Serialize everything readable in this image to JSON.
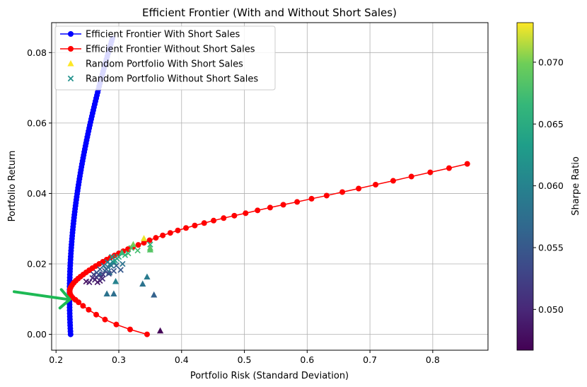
{
  "chart_data": {
    "type": "line",
    "title": "Efficient Frontier (With and Without Short Sales)",
    "xlabel": "Portfolio Risk (Standard Deviation)",
    "ylabel": "Portfolio Return",
    "xlim": [
      0.193,
      0.888
    ],
    "ylim": [
      -0.0045,
      0.0885
    ],
    "xticks": [
      0.2,
      0.3,
      0.4,
      0.5,
      0.6,
      0.7,
      0.8
    ],
    "xtick_labels": [
      "0.2",
      "0.3",
      "0.4",
      "0.5",
      "0.6",
      "0.7",
      "0.8"
    ],
    "yticks": [
      0.0,
      0.02,
      0.04,
      0.06,
      0.08
    ],
    "ytick_labels": [
      "0.00",
      "0.02",
      "0.04",
      "0.06",
      "0.08"
    ],
    "grid": true,
    "legend_position": "top-left",
    "colorbar": {
      "label": "Sharpe Ratio",
      "range": [
        0.0467,
        0.0732
      ],
      "ticks": [
        0.05,
        0.055,
        0.06,
        0.065,
        0.07
      ],
      "tick_labels": [
        "0.050",
        "0.055",
        "0.060",
        "0.065",
        "0.070"
      ],
      "colormap": "viridis"
    },
    "series": [
      {
        "name": "Efficient Frontier With Short Sales",
        "kind": "line-marker",
        "color": "#0000ff",
        "marker": "circle",
        "min_variance": [
          0.2215,
          0.0108
        ],
        "curve": {
          "a": 6.52,
          "point_count": 100,
          "y_range": [
            0.0,
            0.084
          ]
        }
      },
      {
        "name": "Efficient Frontier Without Short Sales",
        "kind": "line-marker",
        "color": "#ff0000",
        "marker": "circle",
        "x": [
          0.345,
          0.318,
          0.296,
          0.278,
          0.264,
          0.252,
          0.243,
          0.236,
          0.231,
          0.2265,
          0.2238,
          0.2222,
          0.2218,
          0.2222,
          0.2235,
          0.2255,
          0.2281,
          0.2313,
          0.235,
          0.239,
          0.2434,
          0.248,
          0.2529,
          0.258,
          0.2633,
          0.2688,
          0.2746,
          0.2806,
          0.2868,
          0.2932,
          0.3,
          0.3071,
          0.3146,
          0.3226,
          0.331,
          0.34,
          0.349,
          0.359,
          0.37,
          0.382,
          0.394,
          0.407,
          0.421,
          0.436,
          0.451,
          0.467,
          0.484,
          0.502,
          0.521,
          0.541,
          0.562,
          0.584,
          0.607,
          0.631,
          0.656,
          0.682,
          0.709,
          0.737,
          0.766,
          0.796,
          0.826,
          0.855
        ],
        "y": [
          0.0,
          0.0014,
          0.0028,
          0.0042,
          0.0056,
          0.007,
          0.0081,
          0.0091,
          0.0098,
          0.0104,
          0.011,
          0.0116,
          0.0122,
          0.0128,
          0.0134,
          0.014,
          0.0146,
          0.0152,
          0.0158,
          0.0164,
          0.017,
          0.0176,
          0.0182,
          0.0188,
          0.0194,
          0.02,
          0.0206,
          0.0212,
          0.0218,
          0.0224,
          0.023,
          0.0236,
          0.0242,
          0.0248,
          0.0254,
          0.026,
          0.0267,
          0.0274,
          0.0281,
          0.0288,
          0.0295,
          0.0302,
          0.0309,
          0.0316,
          0.0323,
          0.033,
          0.0337,
          0.0344,
          0.0352,
          0.036,
          0.0368,
          0.0376,
          0.0385,
          0.0394,
          0.0404,
          0.0414,
          0.0425,
          0.0436,
          0.0448,
          0.046,
          0.0472,
          0.0484
        ]
      },
      {
        "name": "Random Portfolio With Short Sales",
        "kind": "scatter",
        "marker": "triangle",
        "legend_color": "#fde725",
        "points": [
          {
            "x": 0.366,
            "y": 0.001,
            "s": 0.0472
          },
          {
            "x": 0.356,
            "y": 0.0112,
            "s": 0.056
          },
          {
            "x": 0.281,
            "y": 0.0115,
            "s": 0.058
          },
          {
            "x": 0.292,
            "y": 0.0115,
            "s": 0.0575
          },
          {
            "x": 0.345,
            "y": 0.0163,
            "s": 0.059
          },
          {
            "x": 0.338,
            "y": 0.0143,
            "s": 0.058
          },
          {
            "x": 0.295,
            "y": 0.015,
            "s": 0.06
          },
          {
            "x": 0.34,
            "y": 0.0272,
            "s": 0.0728
          },
          {
            "x": 0.35,
            "y": 0.0245,
            "s": 0.069
          },
          {
            "x": 0.35,
            "y": 0.024,
            "s": 0.0685
          },
          {
            "x": 0.323,
            "y": 0.0255,
            "s": 0.07
          },
          {
            "x": 0.305,
            "y": 0.0232,
            "s": 0.067
          },
          {
            "x": 0.292,
            "y": 0.0205,
            "s": 0.065
          },
          {
            "x": 0.27,
            "y": 0.017,
            "s": 0.056
          },
          {
            "x": 0.285,
            "y": 0.0175,
            "s": 0.058
          }
        ]
      },
      {
        "name": "Random Portfolio Without Short Sales",
        "kind": "scatter",
        "marker": "x",
        "legend_color": "#21918c",
        "points": [
          {
            "x": 0.248,
            "y": 0.015,
            "s": 0.048
          },
          {
            "x": 0.253,
            "y": 0.0148,
            "s": 0.049
          },
          {
            "x": 0.258,
            "y": 0.016,
            "s": 0.05
          },
          {
            "x": 0.262,
            "y": 0.0155,
            "s": 0.0495
          },
          {
            "x": 0.266,
            "y": 0.0148,
            "s": 0.0485
          },
          {
            "x": 0.27,
            "y": 0.0152,
            "s": 0.049
          },
          {
            "x": 0.272,
            "y": 0.0162,
            "s": 0.051
          },
          {
            "x": 0.275,
            "y": 0.017,
            "s": 0.052
          },
          {
            "x": 0.278,
            "y": 0.018,
            "s": 0.054
          },
          {
            "x": 0.28,
            "y": 0.0185,
            "s": 0.056
          },
          {
            "x": 0.283,
            "y": 0.019,
            "s": 0.057
          },
          {
            "x": 0.286,
            "y": 0.02,
            "s": 0.059
          },
          {
            "x": 0.288,
            "y": 0.0195,
            "s": 0.058
          },
          {
            "x": 0.291,
            "y": 0.0205,
            "s": 0.061
          },
          {
            "x": 0.294,
            "y": 0.021,
            "s": 0.062
          },
          {
            "x": 0.297,
            "y": 0.0215,
            "s": 0.064
          },
          {
            "x": 0.3,
            "y": 0.022,
            "s": 0.065
          },
          {
            "x": 0.303,
            "y": 0.0183,
            "s": 0.055
          },
          {
            "x": 0.306,
            "y": 0.02,
            "s": 0.058
          },
          {
            "x": 0.31,
            "y": 0.0225,
            "s": 0.066
          },
          {
            "x": 0.315,
            "y": 0.023,
            "s": 0.067
          },
          {
            "x": 0.32,
            "y": 0.0245,
            "s": 0.068
          },
          {
            "x": 0.33,
            "y": 0.0238,
            "s": 0.0675
          },
          {
            "x": 0.35,
            "y": 0.0255,
            "s": 0.066
          },
          {
            "x": 0.26,
            "y": 0.017,
            "s": 0.053
          },
          {
            "x": 0.265,
            "y": 0.0175,
            "s": 0.054
          },
          {
            "x": 0.27,
            "y": 0.0185,
            "s": 0.0555
          },
          {
            "x": 0.276,
            "y": 0.0195,
            "s": 0.0575
          },
          {
            "x": 0.282,
            "y": 0.0205,
            "s": 0.06
          },
          {
            "x": 0.289,
            "y": 0.022,
            "s": 0.063
          },
          {
            "x": 0.296,
            "y": 0.0195,
            "s": 0.056
          },
          {
            "x": 0.274,
            "y": 0.0158,
            "s": 0.0505
          },
          {
            "x": 0.284,
            "y": 0.0172,
            "s": 0.053
          },
          {
            "x": 0.292,
            "y": 0.018,
            "s": 0.0545
          },
          {
            "x": 0.264,
            "y": 0.0163,
            "s": 0.0515
          }
        ]
      }
    ],
    "annotation": {
      "kind": "arrow",
      "color": "#1db954",
      "points_to": [
        0.222,
        0.0105
      ]
    }
  }
}
